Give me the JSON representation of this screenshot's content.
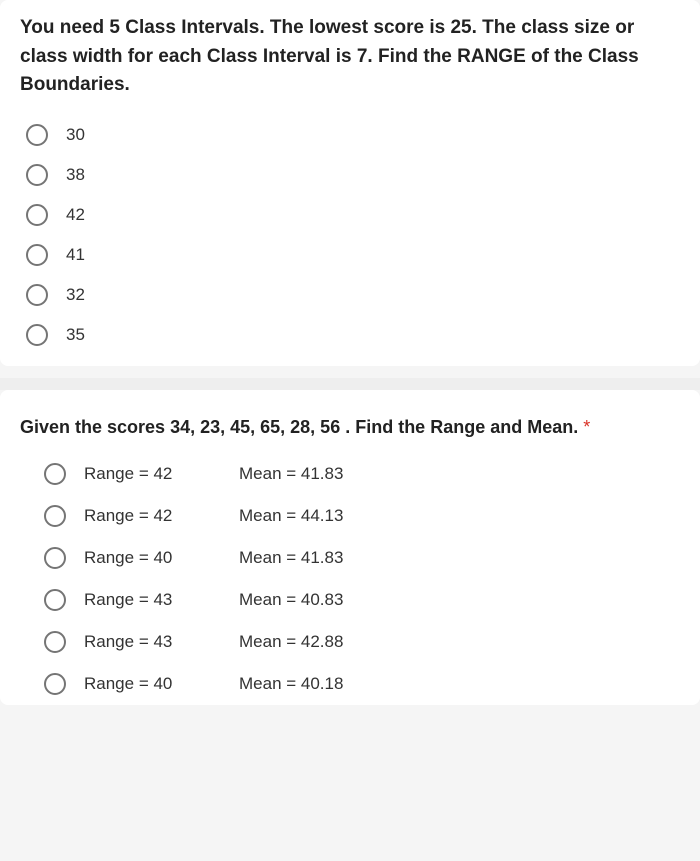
{
  "question1": {
    "text": "You need 5 Class Intervals. The lowest score is 25. The class size or class width for each Class Interval is 7. Find the RANGE of the Class Boundaries.",
    "options": [
      "30",
      "38",
      "42",
      "41",
      "32",
      "35"
    ]
  },
  "question2": {
    "text": "Given the scores 34, 23, 45, 65, 28, 56 . Find the Range and Mean.",
    "required_marker": "*",
    "options": [
      {
        "range": "Range = 42",
        "mean": "Mean = 41.83"
      },
      {
        "range": "Range = 42",
        "mean": "Mean = 44.13"
      },
      {
        "range": "Range = 40",
        "mean": "Mean = 41.83"
      },
      {
        "range": "Range = 43",
        "mean": "Mean = 40.83"
      },
      {
        "range": "Range = 43",
        "mean": "Mean = 42.88"
      },
      {
        "range": "Range = 40",
        "mean": "Mean = 40.18"
      }
    ]
  },
  "colors": {
    "background": "#f5f5f5",
    "card_bg": "#ffffff",
    "text_primary": "#222222",
    "text_secondary": "#333333",
    "radio_border": "#757575",
    "required": "#d93025"
  }
}
